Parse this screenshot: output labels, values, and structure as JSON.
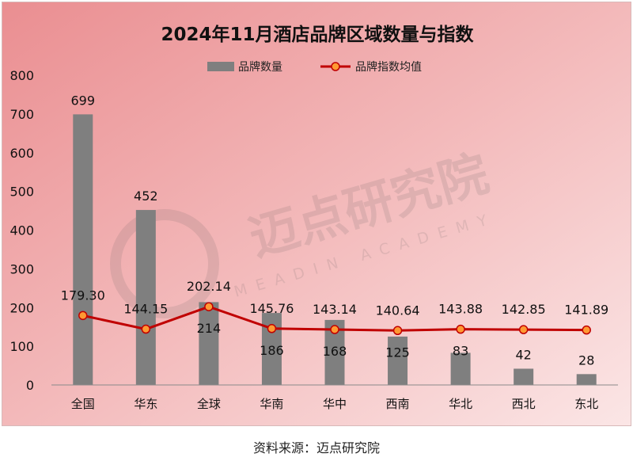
{
  "chart_data": {
    "type": "bar",
    "title": "2024年11月酒店品牌区域数量与指数",
    "categories": [
      "全国",
      "华东",
      "全球",
      "华南",
      "华中",
      "西南",
      "华北",
      "西北",
      "东北"
    ],
    "series": [
      {
        "name": "品牌数量",
        "type": "bar",
        "color": "#7f7f7f",
        "values": [
          699,
          452,
          214,
          186,
          168,
          125,
          83,
          42,
          28
        ]
      },
      {
        "name": "品牌指数均值",
        "type": "line",
        "color": "#c00000",
        "marker_color": "#ff9933",
        "values": [
          179.3,
          144.15,
          202.14,
          145.76,
          143.14,
          140.64,
          143.88,
          142.85,
          141.89
        ],
        "labels": [
          "179.30",
          "144.15",
          "202.14",
          "145.76",
          "143.14",
          "140.64",
          "143.88",
          "142.85",
          "141.89"
        ]
      }
    ],
    "ylim": [
      0,
      800
    ],
    "yticks": [
      0,
      100,
      200,
      300,
      400,
      500,
      600,
      700,
      800
    ],
    "legend_position": "top-center",
    "grid": false
  },
  "watermark": {
    "text_cn": "迈点研究院",
    "text_en": "MEADIN ACADEMY"
  },
  "source": "资料来源：迈点研究院"
}
